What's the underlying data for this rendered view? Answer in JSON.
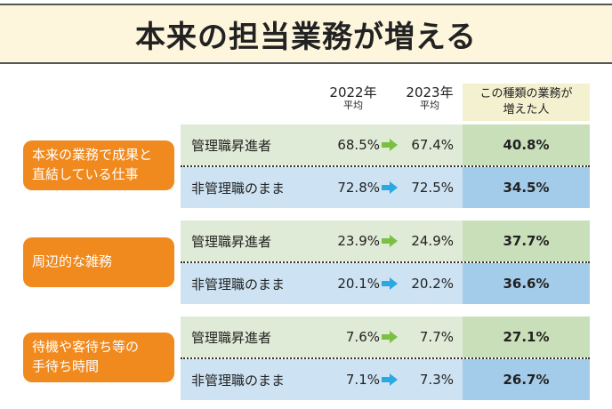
{
  "title": "本来の担当業務が増える",
  "headers": {
    "y2022": "2022年",
    "y2022_sub": "平均",
    "y2023": "2023年",
    "y2023_sub": "平均",
    "increase_line1": "この種類の業務が",
    "increase_line2": "増えた人"
  },
  "chart_data": {
    "type": "table",
    "columns": [
      "2022年平均",
      "2023年平均",
      "この種類の業務が増えた人"
    ],
    "categories": [
      {
        "line1": "本来の業務で成果と",
        "line2": "直結している仕事",
        "rows": [
          {
            "group": "管理職昇進者",
            "y2022": "68.5%",
            "y2023": "67.4%",
            "increase": "40.8%"
          },
          {
            "group": "非管理職のまま",
            "y2022": "72.8%",
            "y2023": "72.5%",
            "increase": "34.5%"
          }
        ]
      },
      {
        "line1": "周辺的な雑務",
        "line2": "",
        "rows": [
          {
            "group": "管理職昇進者",
            "y2022": "23.9%",
            "y2023": "24.9%",
            "increase": "37.7%"
          },
          {
            "group": "非管理職のまま",
            "y2022": "20.1%",
            "y2023": "20.2%",
            "increase": "36.6%"
          }
        ]
      },
      {
        "line1": "待機や客待ち等の",
        "line2": "手待ち時間",
        "rows": [
          {
            "group": "管理職昇進者",
            "y2022": "7.6%",
            "y2023": "7.7%",
            "increase": "27.1%"
          },
          {
            "group": "非管理職のまま",
            "y2022": "7.1%",
            "y2023": "7.3%",
            "increase": "26.7%"
          }
        ]
      }
    ]
  },
  "colors": {
    "category": "#f18a1e",
    "green_row": "#e0ebd7",
    "blue_row": "#cde3f3",
    "green_arrow": "#7bc043",
    "blue_arrow": "#29a9e0"
  },
  "icons": {
    "green_row_arrow": "right-arrow-icon",
    "blue_row_arrow": "right-arrow-icon"
  }
}
